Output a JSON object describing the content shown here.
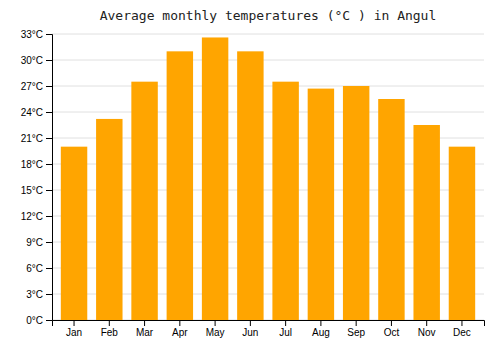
{
  "chart_data": {
    "type": "bar",
    "title": "Average monthly temperatures (°C ) in Angul",
    "categories": [
      "Jan",
      "Feb",
      "Mar",
      "Apr",
      "May",
      "Jun",
      "Jul",
      "Aug",
      "Sep",
      "Oct",
      "Nov",
      "Dec"
    ],
    "values": [
      20.0,
      23.2,
      27.5,
      31.0,
      32.6,
      31.0,
      27.5,
      26.7,
      27.0,
      25.5,
      22.5,
      20.0
    ],
    "color": "#FFA500",
    "ylim": [
      0,
      33
    ],
    "yticks": [
      {
        "value": 0,
        "label": "0°C"
      },
      {
        "value": 3,
        "label": "3°C"
      },
      {
        "value": 6,
        "label": "6°C"
      },
      {
        "value": 9,
        "label": "9°C"
      },
      {
        "value": 12,
        "label": "12°C"
      },
      {
        "value": 15,
        "label": "15°C"
      },
      {
        "value": 18,
        "label": "18°C"
      },
      {
        "value": 21,
        "label": "21°C"
      },
      {
        "value": 24,
        "label": "24°C"
      },
      {
        "value": 27,
        "label": "27°C"
      },
      {
        "value": 30,
        "label": "30°C"
      },
      {
        "value": 33,
        "label": "33°C"
      }
    ],
    "grid": true
  }
}
